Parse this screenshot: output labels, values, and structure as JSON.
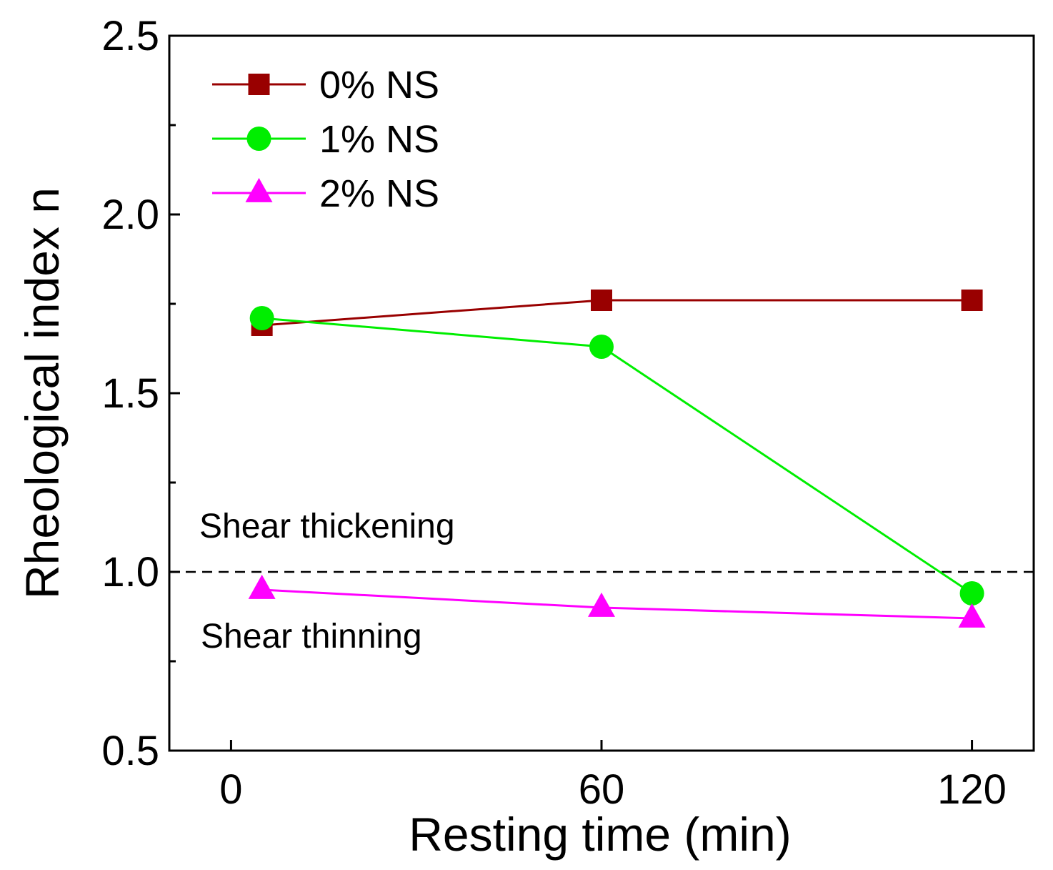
{
  "chart_data": {
    "type": "line",
    "title": "",
    "xlabel": "Resting time (min)",
    "ylabel": "Rheological index  n",
    "xlim": [
      -10,
      130
    ],
    "ylim": [
      0.5,
      2.5
    ],
    "xticks": [
      0,
      60,
      120
    ],
    "xtick_labels": [
      "0",
      "60",
      "120"
    ],
    "yticks": [
      0.5,
      1.0,
      1.5,
      2.0,
      2.5
    ],
    "ytick_labels": [
      "0.5",
      "1.0",
      "1.5",
      "2.0",
      "2.5"
    ],
    "legend_position": "top-left",
    "grid": false,
    "reference_line": {
      "y": 1.0,
      "style": "dashed"
    },
    "annotations": [
      "Shear thickening",
      "Shear thinning"
    ],
    "series": [
      {
        "name": "0% NS",
        "color": "#990000",
        "marker": "square",
        "x": [
          5,
          60,
          120
        ],
        "values": [
          1.69,
          1.76,
          1.76
        ]
      },
      {
        "name": "1% NS",
        "color": "#00ee00",
        "marker": "circle",
        "x": [
          5,
          60,
          120
        ],
        "values": [
          1.71,
          1.63,
          0.94
        ]
      },
      {
        "name": "2% NS",
        "color": "#ff00ff",
        "marker": "triangle",
        "x": [
          5,
          60,
          120
        ],
        "values": [
          0.95,
          0.9,
          0.87
        ]
      }
    ]
  }
}
